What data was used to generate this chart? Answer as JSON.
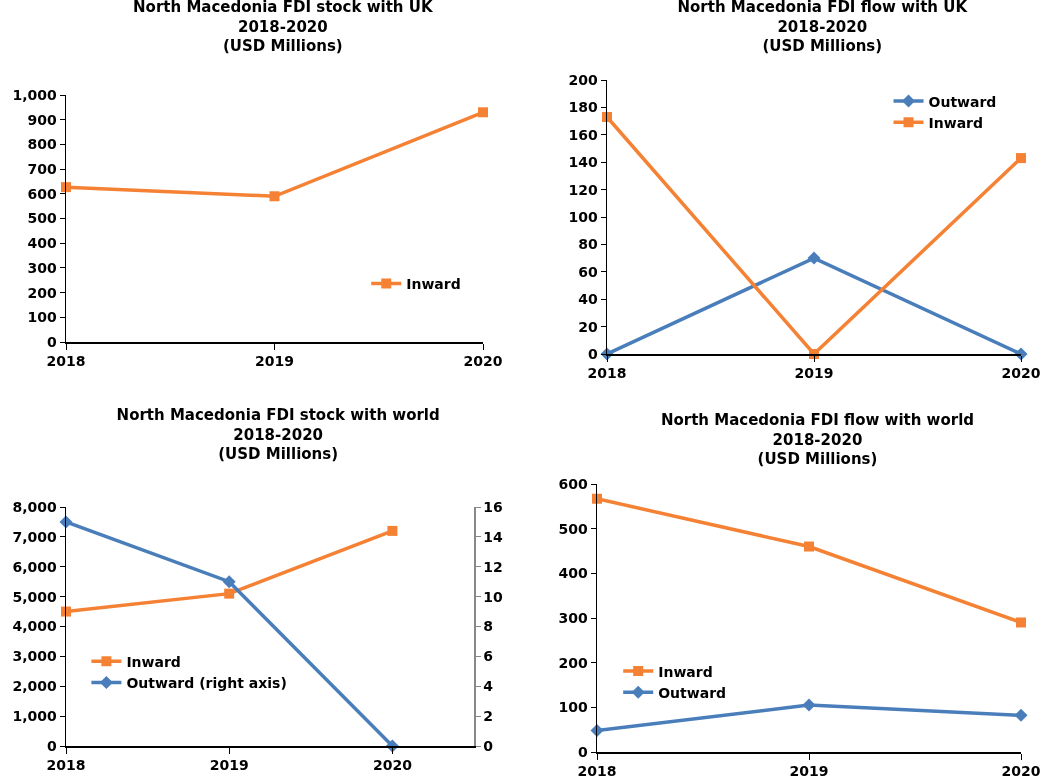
{
  "chart_data": [
    {
      "type": "line",
      "title": "North Macedonia FDI stock with UK\n2018-2020\n(USD Millions)",
      "categories": [
        "2018",
        "2019",
        "2020"
      ],
      "series": [
        {
          "name": "Inward",
          "color": "#f58234",
          "marker": "square",
          "values": [
            627,
            590,
            930
          ]
        }
      ],
      "ylim": [
        0,
        1000
      ],
      "yticks": [
        0,
        {
          "value": 100,
          "label": "100"
        },
        200,
        300,
        400,
        500,
        600,
        700,
        800,
        900,
        {
          "value": 1000,
          "label": "1,000"
        }
      ],
      "grid": false,
      "legend": "bottom right"
    },
    {
      "type": "line",
      "title": "North Macedonia FDI flow with UK\n2018-2020\n(USD Millions)",
      "categories": [
        "2018",
        "2019",
        "2020"
      ],
      "series": [
        {
          "name": "Outward",
          "color": "#4a7ebb",
          "marker": "diamond",
          "values": [
            0,
            70,
            0
          ]
        },
        {
          "name": "Inward",
          "color": "#f58234",
          "marker": "square",
          "values": [
            173,
            0,
            143
          ]
        }
      ],
      "ylim": [
        0,
        200
      ],
      "yticks": [
        0,
        20,
        40,
        60,
        80,
        100,
        120,
        140,
        160,
        180,
        200
      ],
      "grid": false,
      "legend": "top right"
    },
    {
      "type": "line",
      "title": "North Macedonia FDI stock with world\n2018-2020\n(USD Millions)",
      "categories": [
        "2018",
        "2019",
        "2020"
      ],
      "series": [
        {
          "name": "Inward",
          "color": "#f58234",
          "marker": "square",
          "values": [
            4500,
            5100,
            7200
          ]
        },
        {
          "name": "Outward (right axis)",
          "color": "#4a7ebb",
          "marker": "diamond",
          "axis": "y2",
          "values": [
            15,
            11,
            0
          ]
        }
      ],
      "ylim": [
        0,
        8000
      ],
      "yticks": [
        0,
        {
          "value": 1000,
          "label": "1,000"
        },
        {
          "value": 2000,
          "label": "2,000"
        },
        {
          "value": 3000,
          "label": "3,000"
        },
        {
          "value": 4000,
          "label": "4,000"
        },
        {
          "value": 5000,
          "label": "5,000"
        },
        {
          "value": 6000,
          "label": "6,000"
        },
        {
          "value": 7000,
          "label": "7,000"
        },
        {
          "value": 8000,
          "label": "8,000"
        }
      ],
      "y2lim": [
        0,
        16
      ],
      "y2ticks": [
        0,
        2,
        4,
        6,
        8,
        10,
        12,
        14,
        16
      ],
      "grid": false,
      "legend": "bottom left"
    },
    {
      "type": "line",
      "title": "North Macedonia FDI flow with world\n2018-2020\n(USD Millions)",
      "categories": [
        "2018",
        "2019",
        "2020"
      ],
      "series": [
        {
          "name": "Inward",
          "color": "#f58234",
          "marker": "square",
          "values": [
            567,
            460,
            290
          ]
        },
        {
          "name": "Outward",
          "color": "#4a7ebb",
          "marker": "diamond",
          "values": [
            48,
            105,
            82
          ]
        }
      ],
      "ylim": [
        0,
        600
      ],
      "yticks": [
        0,
        100,
        200,
        300,
        400,
        500,
        600
      ],
      "grid": false,
      "legend": "bottom left"
    }
  ]
}
